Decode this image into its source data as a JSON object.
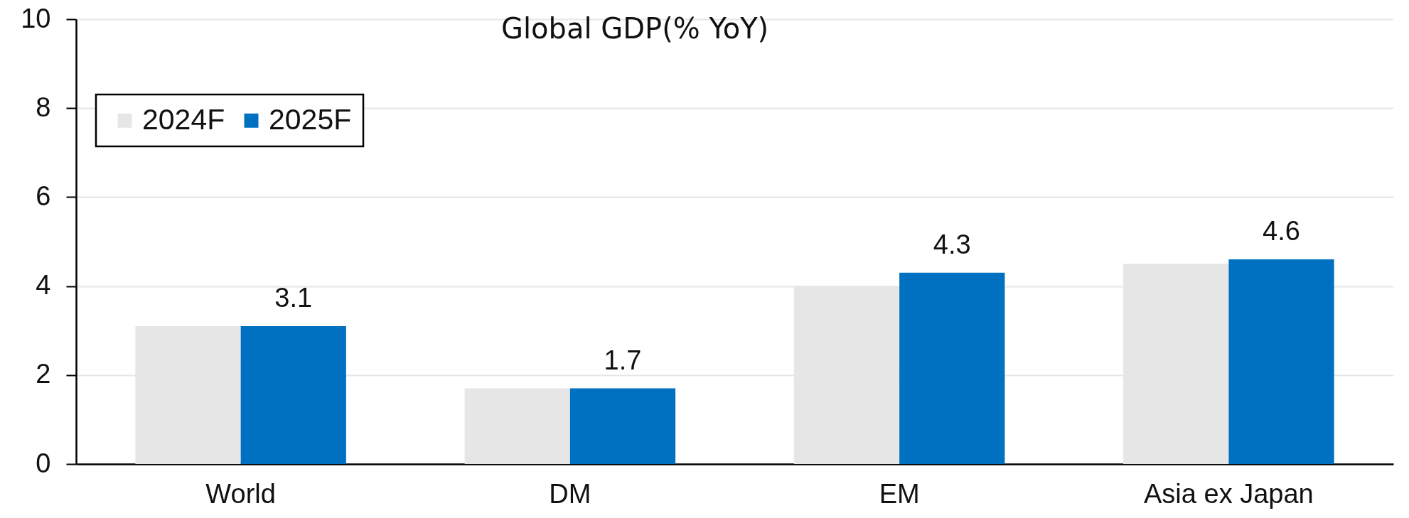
{
  "chart_data": {
    "type": "bar",
    "title": "Global GDP(% YoY)",
    "categories": [
      "World",
      "DM",
      "EM",
      "Asia ex Japan"
    ],
    "series": [
      {
        "name": "2024F",
        "color": "#e6e6e6",
        "values": [
          3.1,
          1.7,
          4.0,
          4.5
        ]
      },
      {
        "name": "2025F",
        "color": "#0070c0",
        "values": [
          3.1,
          1.7,
          4.3,
          4.6
        ],
        "value_labels": [
          "3.1",
          "1.7",
          "4.3",
          "4.6"
        ]
      }
    ],
    "ylim": [
      0,
      10
    ],
    "yticks": [
      0,
      2,
      4,
      6,
      8,
      10
    ],
    "grid": "y",
    "legend": "top left"
  }
}
